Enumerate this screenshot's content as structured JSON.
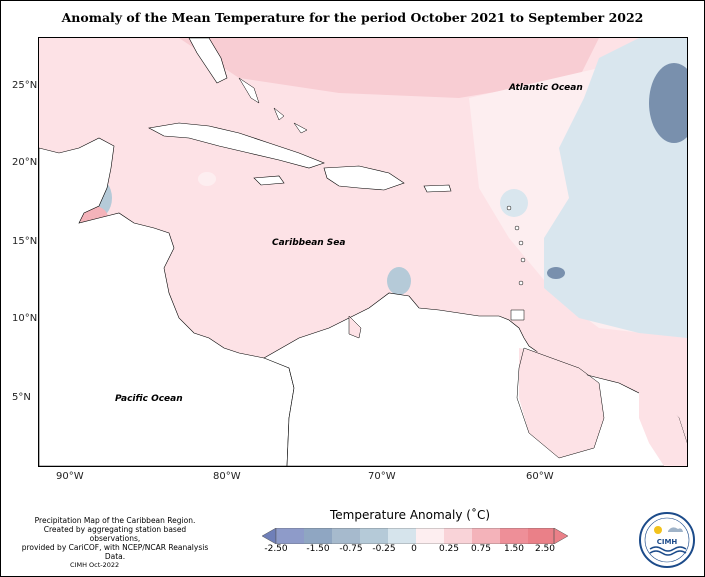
{
  "title": "Anomaly of the Mean Temperature for the period October 2021 to September 2022",
  "axes": {
    "y_ticks": [
      "25°N",
      "20°N",
      "15°N",
      "10°N",
      "5°N"
    ],
    "x_ticks": [
      "90°W",
      "80°W",
      "70°W",
      "60°W"
    ]
  },
  "labels": {
    "atlantic": "Atlantic Ocean",
    "caribbean": "Caribbean Sea",
    "pacific": "Pacific Ocean"
  },
  "footnote": {
    "line1": "Precipitation Map of the Caribbean Region.",
    "line2": "Created by aggregating station based observations,",
    "line3": "provided by CariCOF, with NCEP/NCAR Reanalysis Data."
  },
  "credit": "CIMH Oct-2022",
  "legend": {
    "title": "Temperature Anomaly (˚C)",
    "ticks": [
      "-2.50",
      "-1.50",
      "-0.75",
      "-0.25",
      "0",
      "0.25",
      "0.75",
      "1.50",
      "2.50"
    ],
    "colors": [
      "#6f7fb8",
      "#8e9bc9",
      "#8fa6c2",
      "#b5cad8",
      "#d6e4ec",
      "#fdeef0",
      "#f9d3d8",
      "#f4b3ba",
      "#ee8f98",
      "#ea8088"
    ]
  },
  "logo": {
    "text": "CIMH"
  },
  "colors": {
    "land": "#ffffff",
    "warm_light": "#fde2e6",
    "warm_mid": "#f8cdd3",
    "cool": "#d9e6ee",
    "cool_dark": "#7990ad"
  }
}
